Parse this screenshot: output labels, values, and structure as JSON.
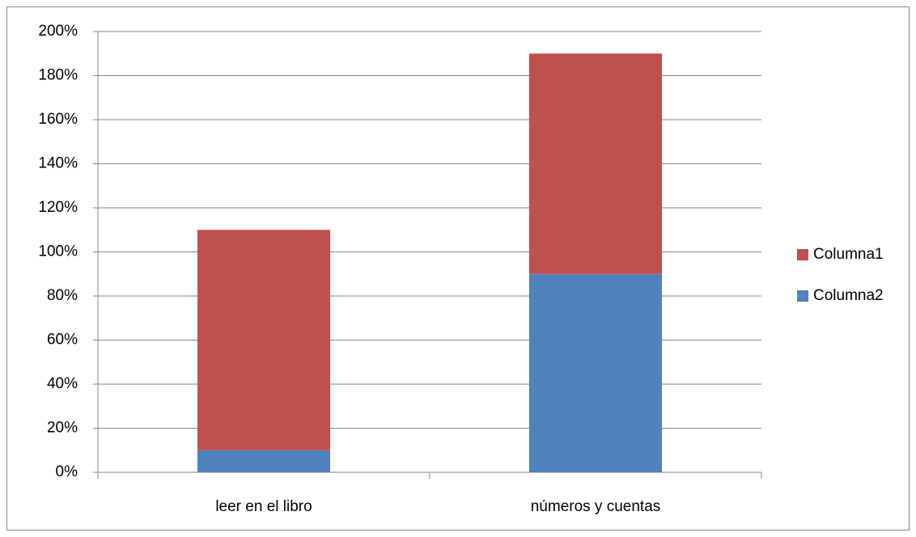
{
  "chart_data": {
    "type": "stacked_bar",
    "categories": [
      "leer en el libro",
      "números y cuentas"
    ],
    "series": [
      {
        "name": "Columna1",
        "color": "#c0504d",
        "values": [
          100,
          100
        ]
      },
      {
        "name": "Columna2",
        "color": "#4f81bd",
        "values": [
          10,
          90
        ]
      }
    ],
    "ylim": [
      0,
      200
    ],
    "yticks": [
      {
        "value": 0,
        "label": "0%"
      },
      {
        "value": 20,
        "label": "20%"
      },
      {
        "value": 40,
        "label": "40%"
      },
      {
        "value": 60,
        "label": "60%"
      },
      {
        "value": 80,
        "label": "80%"
      },
      {
        "value": 100,
        "label": "100%"
      },
      {
        "value": 120,
        "label": "120%"
      },
      {
        "value": 140,
        "label": "140%"
      },
      {
        "value": 160,
        "label": "160%"
      },
      {
        "value": 180,
        "label": "180%"
      },
      {
        "value": 200,
        "label": "200%"
      }
    ],
    "grid": true,
    "legend": "right"
  }
}
